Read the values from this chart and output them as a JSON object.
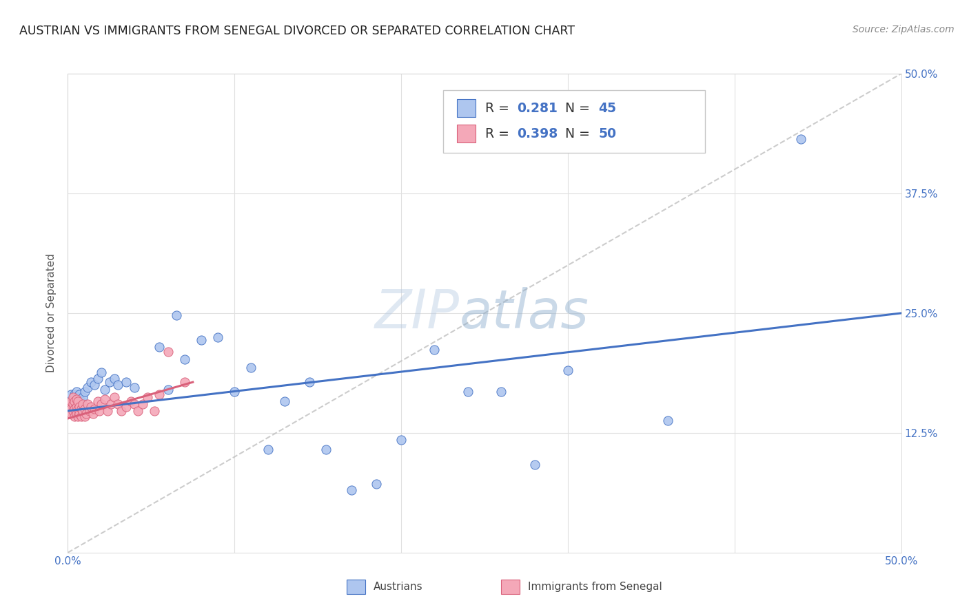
{
  "title": "AUSTRIAN VS IMMIGRANTS FROM SENEGAL DIVORCED OR SEPARATED CORRELATION CHART",
  "source": "Source: ZipAtlas.com",
  "ylabel": "Divorced or Separated",
  "xlim": [
    0.0,
    0.5
  ],
  "ylim": [
    0.0,
    0.5
  ],
  "background_color": "#ffffff",
  "grid_color": "#e0e0e0",
  "watermark": "ZIPatlas",
  "austrians_x": [
    0.002,
    0.003,
    0.004,
    0.004,
    0.005,
    0.005,
    0.006,
    0.007,
    0.007,
    0.008,
    0.009,
    0.01,
    0.012,
    0.014,
    0.016,
    0.018,
    0.02,
    0.022,
    0.025,
    0.028,
    0.03,
    0.035,
    0.04,
    0.055,
    0.06,
    0.065,
    0.07,
    0.08,
    0.09,
    0.1,
    0.11,
    0.12,
    0.13,
    0.145,
    0.155,
    0.17,
    0.185,
    0.2,
    0.22,
    0.24,
    0.26,
    0.28,
    0.3,
    0.36,
    0.44
  ],
  "austrians_y": [
    0.165,
    0.16,
    0.155,
    0.165,
    0.158,
    0.168,
    0.162,
    0.155,
    0.165,
    0.158,
    0.162,
    0.168,
    0.172,
    0.178,
    0.175,
    0.182,
    0.188,
    0.17,
    0.178,
    0.182,
    0.175,
    0.178,
    0.172,
    0.215,
    0.17,
    0.248,
    0.202,
    0.222,
    0.225,
    0.168,
    0.193,
    0.108,
    0.158,
    0.178,
    0.108,
    0.065,
    0.072,
    0.118,
    0.212,
    0.168,
    0.168,
    0.092,
    0.19,
    0.138,
    0.432
  ],
  "senegal_x": [
    0.001,
    0.001,
    0.002,
    0.002,
    0.002,
    0.003,
    0.003,
    0.003,
    0.004,
    0.004,
    0.004,
    0.005,
    0.005,
    0.005,
    0.006,
    0.006,
    0.006,
    0.007,
    0.007,
    0.008,
    0.008,
    0.009,
    0.009,
    0.01,
    0.01,
    0.011,
    0.012,
    0.013,
    0.014,
    0.015,
    0.016,
    0.018,
    0.019,
    0.02,
    0.022,
    0.024,
    0.026,
    0.028,
    0.03,
    0.032,
    0.035,
    0.038,
    0.04,
    0.042,
    0.045,
    0.048,
    0.052,
    0.055,
    0.06,
    0.07
  ],
  "senegal_y": [
    0.155,
    0.148,
    0.15,
    0.158,
    0.145,
    0.148,
    0.155,
    0.162,
    0.142,
    0.15,
    0.158,
    0.145,
    0.152,
    0.16,
    0.142,
    0.15,
    0.158,
    0.145,
    0.152,
    0.142,
    0.15,
    0.148,
    0.155,
    0.142,
    0.15,
    0.145,
    0.155,
    0.148,
    0.152,
    0.145,
    0.15,
    0.158,
    0.148,
    0.155,
    0.16,
    0.148,
    0.155,
    0.162,
    0.155,
    0.148,
    0.152,
    0.158,
    0.155,
    0.148,
    0.155,
    0.162,
    0.148,
    0.165,
    0.21,
    0.178
  ],
  "blue_line_x": [
    0.0,
    0.5
  ],
  "blue_line_y": [
    0.148,
    0.25
  ],
  "pink_line_x": [
    0.0,
    0.075
  ],
  "pink_line_y": [
    0.14,
    0.178
  ],
  "dot_line_x": [
    0.0,
    0.5
  ],
  "dot_line_y": [
    0.0,
    0.5
  ],
  "austrians_color": "#aec6ef",
  "senegal_color": "#f4a8b8",
  "blue_line_color": "#4472c4",
  "pink_line_color": "#d9607a",
  "dot_line_color": "#c0c0c0",
  "title_color": "#222222",
  "tick_color_right": "#4472c4",
  "tick_color_bottom": "#4472c4",
  "legend_R1": "0.281",
  "legend_N1": "45",
  "legend_R2": "0.398",
  "legend_N2": "50"
}
